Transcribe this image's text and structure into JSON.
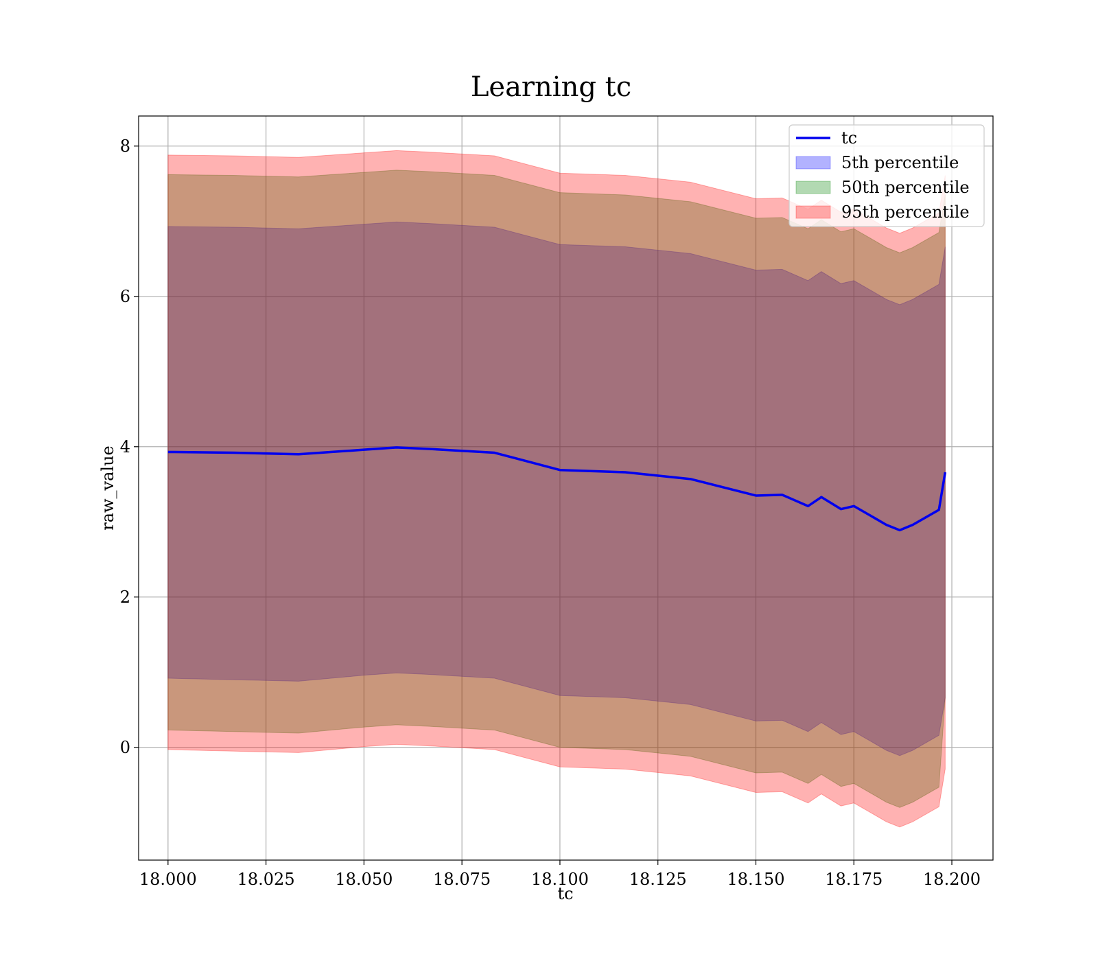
{
  "chart_data": {
    "type": "area",
    "title": "Learning tc",
    "xlabel": "tc",
    "ylabel": "raw_value",
    "xlim": [
      17.9925,
      18.2105
    ],
    "ylim": [
      -1.5,
      8.4
    ],
    "xticks": [
      18.0,
      18.025,
      18.05,
      18.075,
      18.1,
      18.125,
      18.15,
      18.175,
      18.2
    ],
    "xtick_labels": [
      "18.000",
      "18.025",
      "18.050",
      "18.075",
      "18.100",
      "18.125",
      "18.150",
      "18.175",
      "18.200"
    ],
    "yticks": [
      0,
      2,
      4,
      6,
      8
    ],
    "ytick_labels": [
      "0",
      "2",
      "4",
      "6",
      "8"
    ],
    "grid": true,
    "legend_position": "top-right",
    "x": [
      18.0,
      18.0167,
      18.0333,
      18.05,
      18.0583,
      18.0667,
      18.0833,
      18.1,
      18.1167,
      18.1333,
      18.15,
      18.1567,
      18.1633,
      18.1667,
      18.1717,
      18.175,
      18.18,
      18.1833,
      18.1867,
      18.19,
      18.1967,
      18.1983
    ],
    "series": [
      {
        "name": "tc",
        "kind": "line",
        "color": "#0000ee",
        "values": [
          3.93,
          3.92,
          3.9,
          3.96,
          3.99,
          3.97,
          3.92,
          3.69,
          3.66,
          3.57,
          3.35,
          3.36,
          3.21,
          3.33,
          3.17,
          3.21,
          3.06,
          2.96,
          2.89,
          2.96,
          3.16,
          3.66
        ]
      },
      {
        "name": "5th percentile",
        "kind": "band",
        "color": "#0000ff",
        "lower": [
          0.92,
          0.9,
          0.88,
          0.96,
          0.99,
          0.97,
          0.92,
          0.69,
          0.66,
          0.57,
          0.35,
          0.36,
          0.21,
          0.33,
          0.17,
          0.21,
          0.06,
          -0.04,
          -0.11,
          -0.04,
          0.16,
          0.66
        ],
        "upper": [
          6.93,
          6.92,
          6.9,
          6.96,
          6.99,
          6.97,
          6.92,
          6.69,
          6.66,
          6.57,
          6.35,
          6.36,
          6.21,
          6.33,
          6.17,
          6.21,
          6.06,
          5.96,
          5.89,
          5.96,
          6.16,
          6.66
        ]
      },
      {
        "name": "50th percentile",
        "kind": "band",
        "color": "#008000",
        "lower": [
          0.23,
          0.21,
          0.19,
          0.27,
          0.3,
          0.28,
          0.23,
          0.0,
          -0.03,
          -0.12,
          -0.34,
          -0.33,
          -0.48,
          -0.36,
          -0.52,
          -0.48,
          -0.63,
          -0.73,
          -0.8,
          -0.73,
          -0.53,
          0.66
        ],
        "upper": [
          7.62,
          7.61,
          7.59,
          7.65,
          7.68,
          7.66,
          7.61,
          7.38,
          7.35,
          7.26,
          7.04,
          7.05,
          6.9,
          7.02,
          6.86,
          6.9,
          6.75,
          6.65,
          6.58,
          6.65,
          6.85,
          7.35
        ]
      },
      {
        "name": "95th percentile",
        "kind": "band",
        "color": "#ff0000",
        "lower": [
          -0.03,
          -0.05,
          -0.07,
          0.01,
          0.04,
          0.02,
          -0.03,
          -0.26,
          -0.29,
          -0.38,
          -0.6,
          -0.59,
          -0.74,
          -0.62,
          -0.78,
          -0.74,
          -0.89,
          -0.99,
          -1.06,
          -0.99,
          -0.79,
          -0.29
        ],
        "upper": [
          7.88,
          7.87,
          7.85,
          7.91,
          7.94,
          7.92,
          7.87,
          7.64,
          7.61,
          7.52,
          7.3,
          7.31,
          7.16,
          7.28,
          7.12,
          7.16,
          7.01,
          6.91,
          6.84,
          6.91,
          7.11,
          7.61
        ]
      }
    ]
  }
}
